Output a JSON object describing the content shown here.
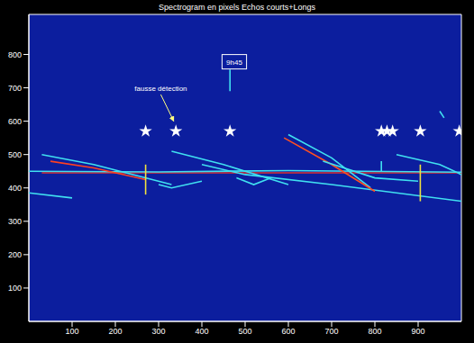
{
  "chart_data": {
    "type": "spectrogram",
    "title": "Spectrogram en pixels Echos courts+Longs",
    "xlim": [
      0,
      1000
    ],
    "ylim": [
      0,
      920
    ],
    "xticks": [
      100,
      200,
      300,
      400,
      500,
      600,
      700,
      800,
      900
    ],
    "yticks": [
      100,
      200,
      300,
      400,
      500,
      600,
      700,
      800
    ],
    "traces": [
      {
        "color": "#d83030",
        "x": [
          30,
          1000
        ],
        "y": [
          445,
          445
        ]
      },
      {
        "color": "#40e0f0",
        "x": [
          0,
          300,
          600,
          1000
        ],
        "y": [
          450,
          448,
          452,
          447
        ]
      },
      {
        "color": "#40e0f0",
        "x": [
          30,
          150,
          330
        ],
        "y": [
          500,
          470,
          410
        ]
      },
      {
        "color": "#ff4020",
        "x": [
          50,
          150,
          270
        ],
        "y": [
          480,
          460,
          425
        ]
      },
      {
        "color": "#40e0f0",
        "x": [
          0,
          100
        ],
        "y": [
          385,
          370
        ]
      },
      {
        "color": "#40e0f0",
        "x": [
          330,
          450,
          600
        ],
        "y": [
          510,
          470,
          410
        ]
      },
      {
        "color": "#40e0f0",
        "x": [
          400,
          500,
          700,
          1000
        ],
        "y": [
          470,
          440,
          410,
          360
        ]
      },
      {
        "color": "#40e0f0",
        "x": [
          600,
          700,
          790
        ],
        "y": [
          560,
          490,
          400
        ]
      },
      {
        "color": "#ff5020",
        "x": [
          590,
          700,
          800
        ],
        "y": [
          550,
          470,
          390
        ]
      },
      {
        "color": "#40e0f0",
        "x": [
          850,
          950,
          1000
        ],
        "y": [
          500,
          470,
          440
        ]
      },
      {
        "color": "#40e0f0",
        "x": [
          480,
          520,
          560
        ],
        "y": [
          430,
          410,
          430
        ]
      },
      {
        "color": "#40e0f0",
        "x": [
          300,
          330,
          400
        ],
        "y": [
          410,
          400,
          420
        ]
      },
      {
        "color": "#40e0f0",
        "x": [
          680,
          800,
          900
        ],
        "y": [
          480,
          430,
          420
        ]
      },
      {
        "color": "#f0e040",
        "x": [
          270,
          270
        ],
        "y": [
          380,
          470
        ]
      },
      {
        "color": "#40e0f0",
        "x": [
          465,
          465
        ],
        "y": [
          690,
          755
        ]
      },
      {
        "color": "#f0e040",
        "x": [
          905,
          905
        ],
        "y": [
          360,
          470
        ]
      },
      {
        "color": "#40e0f0",
        "x": [
          815,
          815
        ],
        "y": [
          450,
          480
        ]
      },
      {
        "color": "#40e0f0",
        "x": [
          950,
          960
        ],
        "y": [
          630,
          610
        ]
      }
    ],
    "detections": {
      "x": [
        270,
        340,
        465,
        815,
        828,
        841,
        905,
        995
      ],
      "y": [
        570,
        570,
        570,
        570,
        570,
        570,
        570,
        570
      ],
      "marker": "star",
      "color": "#ffffff"
    },
    "annotations": [
      {
        "text": "9h45",
        "x": 475,
        "y": 770
      },
      {
        "text": "fausse détection",
        "x": 305,
        "y": 680,
        "arrow_to": [
          335,
          600
        ]
      }
    ]
  }
}
